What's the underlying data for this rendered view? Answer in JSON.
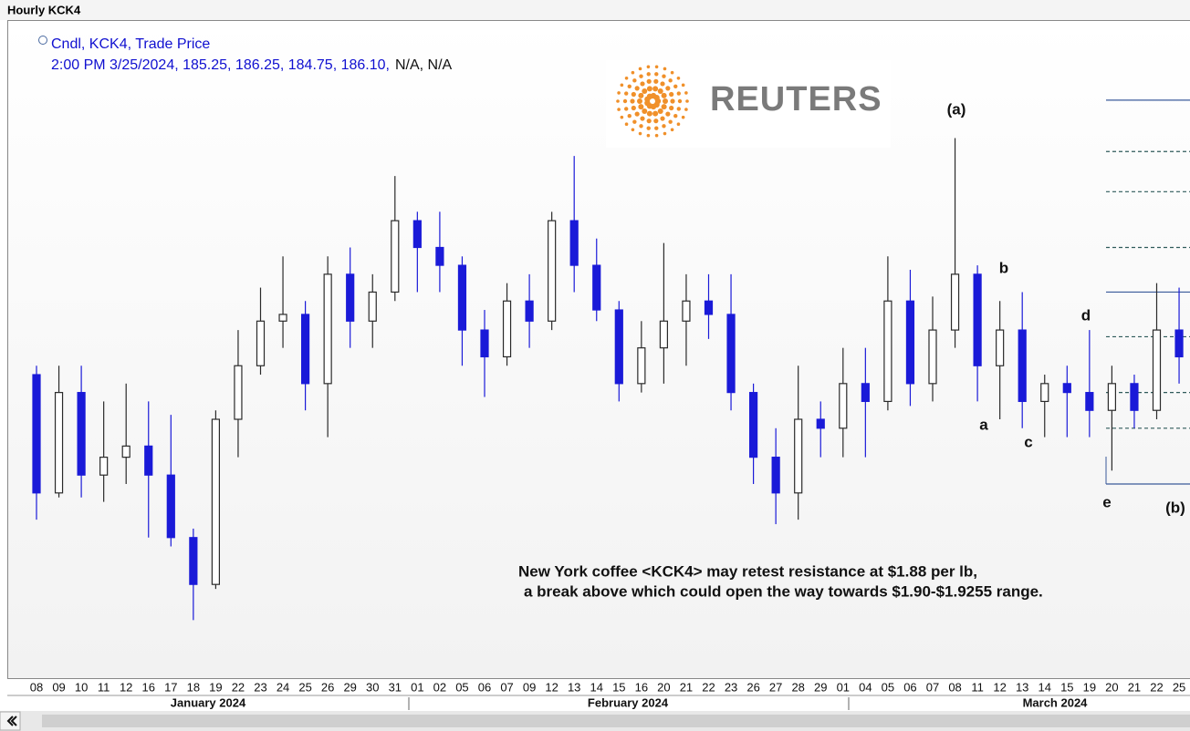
{
  "window_title": "Hourly KCK4",
  "chart_data": {
    "type": "candlestick",
    "legend_title": "Cndl, KCK4, Trade Price",
    "legend_line": "2:00 PM 3/25/2024, 185.25, 186.25, 184.75, 186.10,",
    "legend_na": "N/A, N/A",
    "logo": "REUTERS",
    "caption": [
      "New York coffee <KCK4> may retest resistance at $1.88 per lb,",
      "a break above which could open the way towards $1.90-$1.9255 range."
    ],
    "annotations": [
      "(a)",
      "b",
      "a",
      "d",
      "c",
      "e",
      "(b)"
    ],
    "months": [
      "January 2024",
      "February 2024",
      "March 2024"
    ],
    "categories": [
      "08",
      "09",
      "10",
      "11",
      "12",
      "16",
      "17",
      "18",
      "19",
      "22",
      "23",
      "24",
      "25",
      "26",
      "29",
      "30",
      "31",
      "01",
      "02",
      "05",
      "06",
      "07",
      "09",
      "12",
      "13",
      "14",
      "15",
      "16",
      "20",
      "21",
      "22",
      "23",
      "26",
      "27",
      "28",
      "29",
      "01",
      "04",
      "05",
      "06",
      "07",
      "08",
      "11",
      "12",
      "13",
      "14",
      "15",
      "19",
      "20",
      "21",
      "22",
      "25"
    ],
    "open": [
      184.3,
      179.0,
      183.5,
      179.8,
      180.6,
      181.1,
      179.8,
      177.0,
      174.9,
      182.3,
      184.7,
      186.7,
      187.0,
      183.9,
      188.8,
      186.7,
      188.0,
      191.2,
      190.0,
      189.2,
      186.3,
      185.1,
      187.6,
      186.7,
      191.2,
      189.2,
      187.2,
      183.9,
      185.5,
      186.7,
      187.6,
      187.0,
      183.5,
      180.6,
      179.0,
      182.3,
      181.9,
      183.9,
      183.1,
      187.6,
      183.9,
      186.3,
      188.8,
      184.7,
      186.3,
      183.1,
      183.9,
      183.5,
      182.7,
      183.9,
      182.7,
      186.3
    ],
    "high": [
      184.7,
      184.7,
      184.7,
      183.1,
      183.9,
      183.1,
      182.5,
      177.4,
      182.7,
      186.3,
      188.2,
      189.6,
      187.6,
      189.6,
      190.0,
      188.8,
      193.2,
      191.6,
      191.6,
      189.6,
      187.2,
      188.4,
      188.8,
      191.6,
      194.1,
      190.4,
      187.6,
      186.7,
      190.2,
      188.8,
      188.8,
      188.8,
      183.9,
      181.9,
      184.7,
      183.1,
      185.5,
      185.5,
      189.6,
      189.0,
      187.8,
      194.9,
      189.2,
      187.6,
      188.0,
      184.3,
      184.7,
      186.3,
      184.7,
      184.3,
      188.4,
      188.2
    ],
    "low": [
      177.8,
      178.8,
      178.8,
      178.6,
      179.4,
      177.0,
      176.6,
      173.3,
      174.7,
      180.6,
      184.3,
      185.5,
      182.7,
      181.5,
      185.5,
      185.5,
      187.6,
      188.0,
      188.0,
      184.7,
      183.3,
      184.7,
      185.5,
      186.3,
      188.0,
      186.7,
      183.1,
      183.5,
      183.9,
      184.7,
      185.9,
      182.7,
      179.4,
      177.6,
      177.8,
      180.6,
      180.6,
      180.6,
      182.7,
      182.9,
      183.1,
      185.5,
      183.1,
      182.3,
      181.9,
      181.5,
      181.5,
      181.5,
      180.0,
      181.9,
      182.3,
      183.9
    ],
    "close": [
      179.0,
      183.5,
      179.8,
      180.6,
      181.1,
      179.8,
      177.0,
      174.9,
      182.3,
      184.7,
      186.7,
      187.0,
      183.9,
      188.8,
      186.7,
      188.0,
      191.2,
      190.0,
      189.2,
      186.3,
      185.1,
      187.6,
      186.7,
      191.2,
      189.2,
      187.2,
      183.9,
      185.5,
      186.7,
      187.6,
      187.0,
      183.5,
      180.6,
      179.0,
      182.3,
      181.9,
      183.9,
      183.1,
      187.6,
      183.9,
      186.3,
      188.8,
      184.7,
      186.3,
      183.1,
      183.9,
      183.5,
      182.7,
      183.9,
      182.7,
      186.3,
      185.1
    ],
    "up_color": "#2a2a2a",
    "down_color": "#1a1ad8",
    "levels": [
      {
        "value": 196.6,
        "style": "solid"
      },
      {
        "value": 194.3,
        "style": "dashed"
      },
      {
        "value": 192.5,
        "style": "dashed"
      },
      {
        "value": 190.0,
        "style": "dashed"
      },
      {
        "value": 188.0,
        "style": "solid"
      },
      {
        "value": 186.0,
        "style": "dashed"
      },
      {
        "value": 183.5,
        "style": "dashed"
      },
      {
        "value": 181.9,
        "style": "dashed"
      },
      {
        "value": 179.4,
        "style": "solid"
      }
    ],
    "level_colors": {
      "solid": "#3a5a9a",
      "dashed": "#2f5a5a"
    },
    "ylim": [
      170.7,
      200.15
    ]
  }
}
